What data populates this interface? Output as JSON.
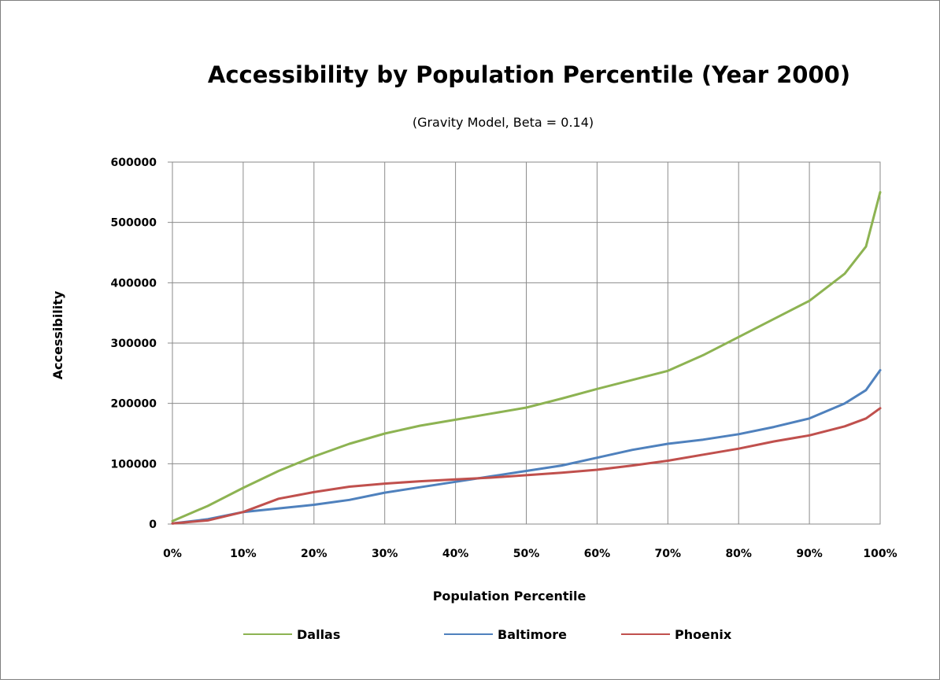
{
  "chart_data": {
    "type": "line",
    "title": "Accessibility by Population Percentile (Year 2000)",
    "subtitle": "(Gravity Model, Beta = 0.14)",
    "xlabel": "Population Percentile",
    "ylabel": "Accessibility",
    "xlim": [
      0,
      100
    ],
    "ylim": [
      0,
      600000
    ],
    "x_ticks": [
      "0%",
      "10%",
      "20%",
      "30%",
      "40%",
      "50%",
      "60%",
      "70%",
      "80%",
      "90%",
      "100%"
    ],
    "y_ticks": [
      "0",
      "100000",
      "200000",
      "300000",
      "400000",
      "500000",
      "600000"
    ],
    "grid": true,
    "legend_position": "bottom",
    "x": [
      0,
      5,
      10,
      15,
      20,
      25,
      30,
      35,
      40,
      45,
      50,
      55,
      60,
      65,
      70,
      75,
      80,
      85,
      90,
      95,
      98,
      100
    ],
    "series": [
      {
        "name": "Dallas",
        "color": "#8db352",
        "values": [
          5000,
          30000,
          60000,
          88000,
          112000,
          133000,
          150000,
          163000,
          173000,
          183000,
          193000,
          208000,
          224000,
          239000,
          254000,
          280000,
          310000,
          340000,
          370000,
          415000,
          460000,
          550000
        ]
      },
      {
        "name": "Baltimore",
        "color": "#4f81bd",
        "values": [
          1000,
          8000,
          20000,
          26000,
          32000,
          40000,
          52000,
          61000,
          70000,
          79000,
          88000,
          97000,
          110000,
          123000,
          133000,
          140000,
          149000,
          161000,
          175000,
          200000,
          222000,
          255000
        ]
      },
      {
        "name": "Phoenix",
        "color": "#c0504d",
        "values": [
          1000,
          6000,
          20000,
          42000,
          53000,
          62000,
          67000,
          71000,
          74000,
          77000,
          81000,
          85000,
          90000,
          97000,
          105000,
          115000,
          125000,
          137000,
          147000,
          162000,
          175000,
          192000
        ]
      }
    ]
  }
}
